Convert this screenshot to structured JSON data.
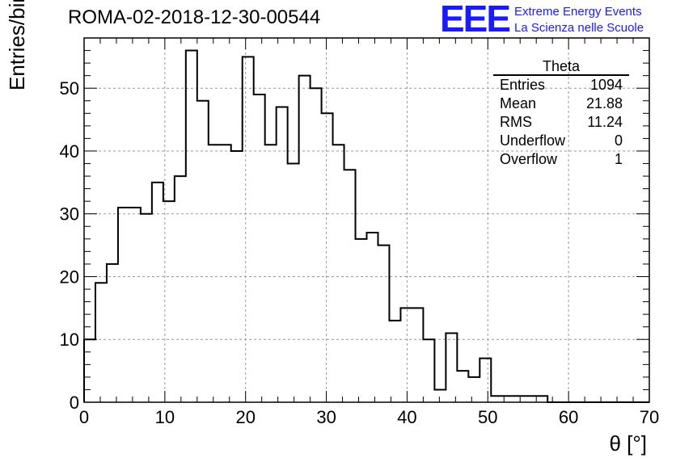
{
  "header": {
    "run_id": "ROMA-02-2018-12-30-00544"
  },
  "logo": {
    "mark": "EEE",
    "line1": "Extreme Energy Events",
    "line2": "La Scienza nelle Scuole",
    "color": "#1a1aff"
  },
  "stats_box": {
    "title": "Theta",
    "rows": [
      {
        "label": "Entries",
        "value": "1094"
      },
      {
        "label": "Mean",
        "value": "21.88"
      },
      {
        "label": "RMS",
        "value": "11.24"
      },
      {
        "label": "Underflow",
        "value": "0"
      },
      {
        "label": "Overflow",
        "value": "1"
      }
    ]
  },
  "chart_data": {
    "type": "histogram",
    "title": "ROMA-02-2018-12-30-00544",
    "xlabel": "θ [°]",
    "ylabel": "Entries/bin",
    "xlim": [
      0,
      70
    ],
    "ylim": [
      0,
      58
    ],
    "xticks": [
      0,
      10,
      20,
      30,
      40,
      50,
      60,
      70
    ],
    "yticks": [
      0,
      10,
      20,
      30,
      40,
      50
    ],
    "grid": true,
    "bin_edges": [
      0,
      1.4,
      2.8,
      4.2,
      5.6,
      7,
      8.4,
      9.8,
      11.2,
      12.6,
      14,
      15.4,
      16.8,
      18.2,
      19.6,
      21,
      22.4,
      23.8,
      25.2,
      26.6,
      28,
      29.4,
      30.8,
      32.2,
      33.6,
      35,
      36.4,
      37.8,
      39.2,
      40.6,
      42,
      43.4,
      44.8,
      46.2,
      47.6,
      49,
      50.4,
      51.8,
      53.2,
      54.6,
      56,
      57.4,
      58.8,
      60.2,
      61.6,
      63,
      64.4,
      65.8,
      67.2,
      68.6,
      70
    ],
    "values": [
      10,
      19,
      22,
      31,
      31,
      30,
      35,
      32,
      36,
      56,
      48,
      41,
      41,
      40,
      55,
      49,
      41,
      47,
      38,
      52,
      50,
      46,
      41,
      37,
      26,
      27,
      25,
      13,
      15,
      15,
      10,
      2,
      11,
      5,
      4,
      7,
      1,
      1,
      1,
      1,
      1,
      0,
      0,
      0,
      0,
      0,
      0,
      0,
      0,
      0
    ],
    "line_color": "#000000"
  }
}
